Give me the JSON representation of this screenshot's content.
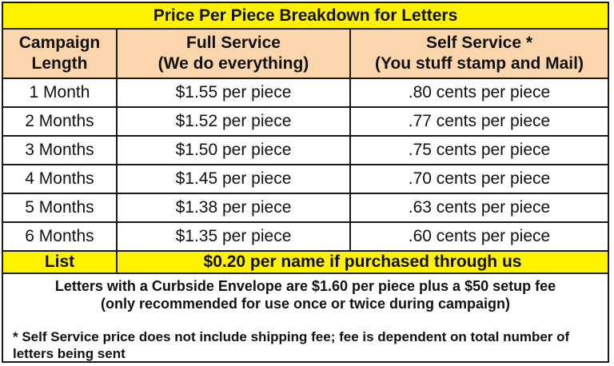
{
  "title": "Price Per Piece Breakdown for Letters",
  "columns": [
    {
      "line1": "Campaign",
      "line2": "Length"
    },
    {
      "line1": "Full Service",
      "line2": "(We do everything)"
    },
    {
      "line1": "Self Service *",
      "line2": "(You stuff stamp and Mail)"
    }
  ],
  "rows": [
    {
      "length": "1 Month",
      "full": "$1.55 per piece",
      "self": ".80 cents per piece"
    },
    {
      "length": "2 Months",
      "full": "$1.52 per piece",
      "self": ".77 cents per piece"
    },
    {
      "length": "3 Months",
      "full": "$1.50 per piece",
      "self": ".75 cents per piece"
    },
    {
      "length": "4 Months",
      "full": "$1.45 per piece",
      "self": ".70 cents per piece"
    },
    {
      "length": "5 Months",
      "full": "$1.38 per piece",
      "self": ".63 cents per piece"
    },
    {
      "length": "6 Months",
      "full": "$1.35 per piece",
      "self": ".60 cents per piece"
    }
  ],
  "list_row": {
    "label": "List",
    "value": "$0.20 per name if purchased through us"
  },
  "curbside_note": {
    "line1": "Letters with a Curbside Envelope are $1.60 per piece plus a $50 setup fee",
    "line2": "(only recommended for use once or twice during campaign)"
  },
  "footnote": "*  Self Service price does not include shipping fee; fee is dependent on total number of letters being sent",
  "colors": {
    "title_bg": "#fff200",
    "header_bg": "#fbd6ad",
    "border": "#1a1a1a"
  }
}
